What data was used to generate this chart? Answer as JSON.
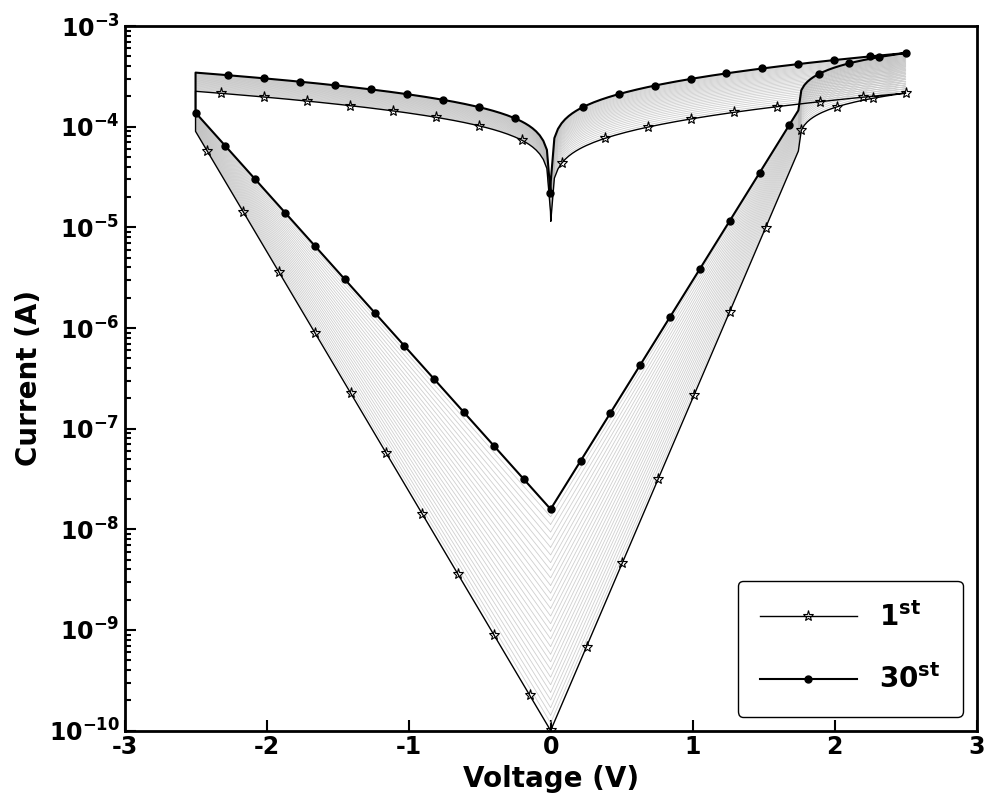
{
  "xlabel": "Voltage (V)",
  "ylabel": "Current (A)",
  "xlim": [
    -3,
    3
  ],
  "ylim_log_min": -10,
  "ylim_log_max": -3,
  "xlabel_fontsize": 20,
  "ylabel_fontsize": 20,
  "tick_fontsize": 17,
  "legend_fontsize": 20,
  "num_intermediate": 28,
  "background_color": "#ffffff",
  "line_color_dark": "#000000",
  "line_color_intermediate": "#bbbbbb",
  "linewidth_first": 1.0,
  "linewidth_last": 1.5,
  "linewidth_intermediate": 0.6,
  "marker_size_first": 8,
  "marker_size_last": 5
}
